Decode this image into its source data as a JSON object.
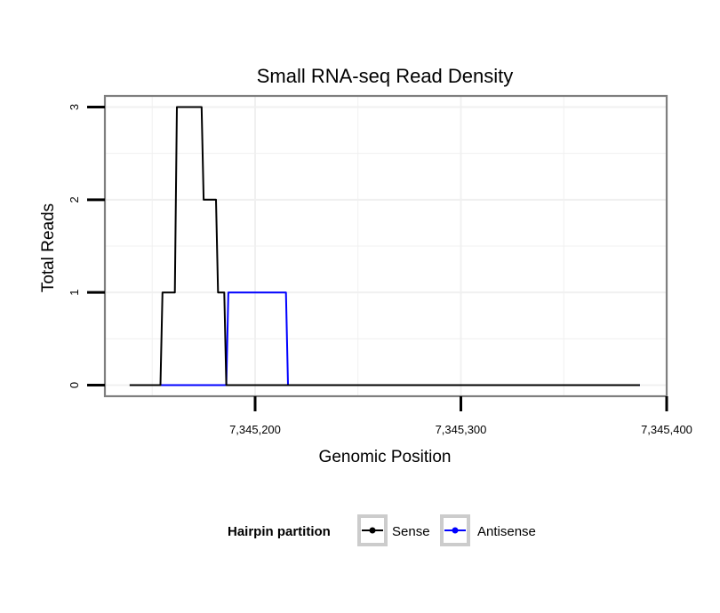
{
  "chart_data": {
    "type": "line",
    "title": "Small RNA-seq Read Density",
    "xlabel": "Genomic Position",
    "ylabel": "Total Reads",
    "xlim": [
      7345127,
      7345400
    ],
    "ylim": [
      -0.12,
      3.12
    ],
    "x_ticks": [
      7345200,
      7345300,
      7345400
    ],
    "x_tick_labels": [
      "7,345,200",
      "7,345,300",
      "7,345,400"
    ],
    "y_ticks": [
      0,
      1,
      2,
      3
    ],
    "y_tick_labels": [
      "0",
      "1",
      "2",
      "3"
    ],
    "grid": true,
    "legend": {
      "title": "Hairpin partition",
      "position": "bottom"
    },
    "series": [
      {
        "name": "Sense",
        "color": "#000000",
        "x": [
          7345139,
          7345154,
          7345155,
          7345161,
          7345162,
          7345174,
          7345175,
          7345181,
          7345182,
          7345185,
          7345186,
          7345387
        ],
        "y": [
          0,
          0,
          1,
          1,
          3,
          3,
          2,
          2,
          1,
          1,
          0,
          0
        ]
      },
      {
        "name": "Antisense",
        "color": "#0000ff",
        "x": [
          7345154,
          7345186,
          7345187,
          7345215,
          7345216,
          7345387
        ],
        "y": [
          0,
          0,
          1,
          1,
          0,
          0
        ]
      }
    ]
  }
}
